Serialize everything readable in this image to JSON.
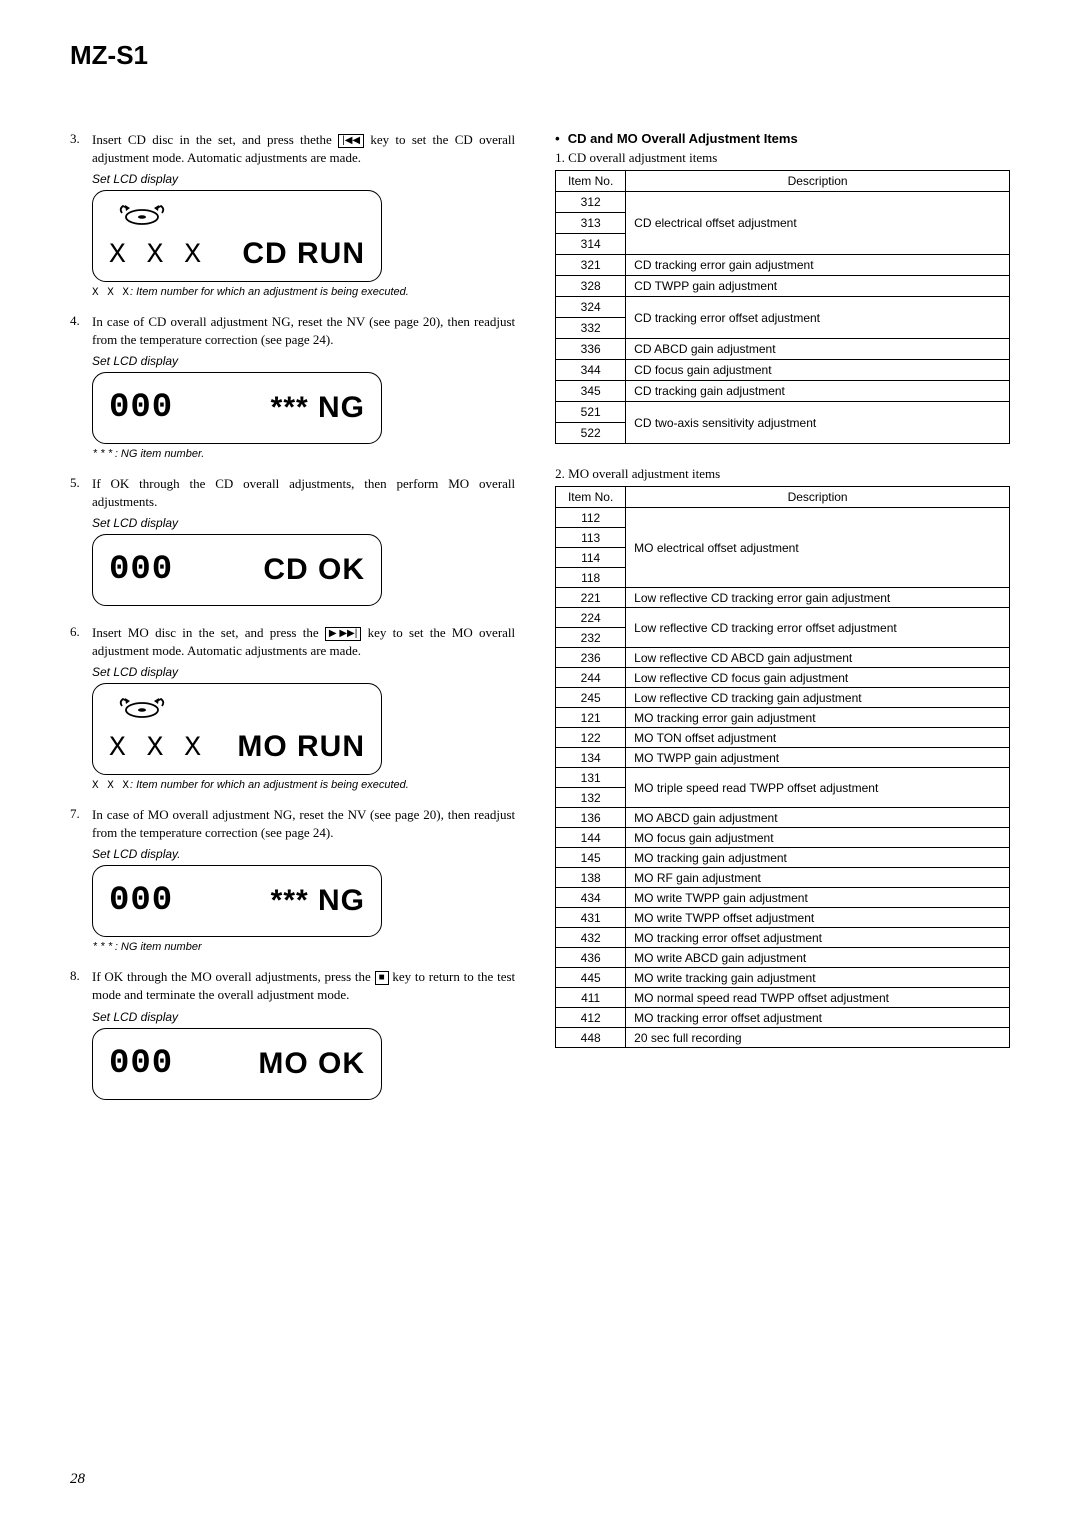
{
  "model": "MZ-S1",
  "page_number": "28",
  "steps": [
    {
      "num": "3.",
      "pre": "Insert CD disc in the set, and press thethe ",
      "key_glyph": "|◀◀",
      "post": " key to set the CD overall adjustment mode. Automatic adjustments are made.",
      "lcd_label": "Set LCD display",
      "lcd_left": "X X X",
      "lcd_right": "CD RUN",
      "tall": true,
      "note_code": "X X X",
      "note_txt": ": Item number for which an adjustment is being executed."
    },
    {
      "num": "4.",
      "pre": "In case of CD overall adjustment NG, reset the NV (see page 20), then readjust from the temperature correction (see page 24).",
      "lcd_label": "Set LCD display",
      "lcd_left": "000",
      "lcd_right": "*** NG",
      "note_code": "***",
      "note_txt": ": NG item number."
    },
    {
      "num": "5.",
      "pre": "If OK through the CD overall adjustments, then perform MO overall adjustments.",
      "lcd_label": "Set LCD display",
      "lcd_left": "000",
      "lcd_right": "CD OK"
    },
    {
      "num": "6.",
      "pre": "Insert MO disc in the set, and press the ",
      "key_glyph": "▶ ▶▶|",
      "post": " key to set the MO overall adjustment mode. Automatic adjustments are made.",
      "lcd_label": "Set LCD display",
      "lcd_left": "X X X",
      "lcd_right": "MO RUN",
      "tall": true,
      "note_code": "X X X",
      "note_txt": ": Item number for which an adjustment is being executed."
    },
    {
      "num": "7.",
      "pre": "In case of MO overall adjustment NG, reset the NV (see page 20), then readjust from the temperature correction (see page 24).",
      "lcd_label": "Set LCD display.",
      "lcd_left": "000",
      "lcd_right": "*** NG",
      "note_code": "***",
      "note_txt": ": NG item number"
    },
    {
      "num": "8.",
      "pre": "If OK through the MO overall adjustments, press the ",
      "key_glyph": "■",
      "post": " key to return to the test mode and terminate the overall adjustment mode.",
      "lcd_label": "Set LCD display",
      "lcd_left": "000",
      "lcd_right": "MO OK"
    }
  ],
  "right_heading": "CD and MO Overall  Adjustment Items",
  "table1_caption": "1.  CD overall adjustment items",
  "table_headers": {
    "col1": "Item No.",
    "col2": "Description"
  },
  "table1": [
    {
      "items": [
        "312",
        "313",
        "314"
      ],
      "desc": "CD electrical offset adjustment"
    },
    {
      "items": [
        "321"
      ],
      "desc": "CD tracking error gain adjustment"
    },
    {
      "items": [
        "328"
      ],
      "desc": "CD TWPP gain adjustment"
    },
    {
      "items": [
        "324",
        "332"
      ],
      "desc": "CD tracking error offset adjustment"
    },
    {
      "items": [
        "336"
      ],
      "desc": "CD ABCD gain adjustment"
    },
    {
      "items": [
        "344"
      ],
      "desc": "CD focus gain adjustment"
    },
    {
      "items": [
        "345"
      ],
      "desc": "CD tracking gain adjustment"
    },
    {
      "items": [
        "521",
        "522"
      ],
      "desc": "CD two-axis sensitivity adjustment"
    }
  ],
  "table2_caption": "2. MO overall adjustment items",
  "table2": [
    {
      "items": [
        "112",
        "113",
        "114",
        "118"
      ],
      "desc": "MO electrical offset adjustment"
    },
    {
      "items": [
        "221"
      ],
      "desc": "Low reflective CD tracking error gain adjustment"
    },
    {
      "items": [
        "224",
        "232"
      ],
      "desc": "Low reflective CD tracking error offset adjustment"
    },
    {
      "items": [
        "236"
      ],
      "desc": "Low reflective CD ABCD gain adjustment"
    },
    {
      "items": [
        "244"
      ],
      "desc": "Low reflective CD focus gain adjustment"
    },
    {
      "items": [
        "245"
      ],
      "desc": "Low reflective CD tracking gain adjustment"
    },
    {
      "items": [
        "121"
      ],
      "desc": "MO tracking error gain adjustment"
    },
    {
      "items": [
        "122"
      ],
      "desc": "MO TON offset adjustment"
    },
    {
      "items": [
        "134"
      ],
      "desc": "MO TWPP gain adjustment"
    },
    {
      "items": [
        "131",
        "132"
      ],
      "desc": "MO triple speed read TWPP offset adjustment"
    },
    {
      "items": [
        "136"
      ],
      "desc": "MO ABCD gain adjustment"
    },
    {
      "items": [
        "144"
      ],
      "desc": "MO focus gain adjustment"
    },
    {
      "items": [
        "145"
      ],
      "desc": "MO tracking gain adjustment"
    },
    {
      "items": [
        "138"
      ],
      "desc": "MO RF gain adjustment"
    },
    {
      "items": [
        "434"
      ],
      "desc": "MO write TWPP gain adjustment"
    },
    {
      "items": [
        "431"
      ],
      "desc": "MO write TWPP offset adjustment"
    },
    {
      "items": [
        "432"
      ],
      "desc": "MO tracking error offset adjustment"
    },
    {
      "items": [
        "436"
      ],
      "desc": "MO write ABCD gain adjustment"
    },
    {
      "items": [
        "445"
      ],
      "desc": "MO write tracking gain adjustment"
    },
    {
      "items": [
        "411"
      ],
      "desc": "MO normal speed read TWPP offset adjustment"
    },
    {
      "items": [
        "412"
      ],
      "desc": "MO tracking error offset adjustment"
    },
    {
      "items": [
        "448"
      ],
      "desc": "20 sec full recording"
    }
  ]
}
